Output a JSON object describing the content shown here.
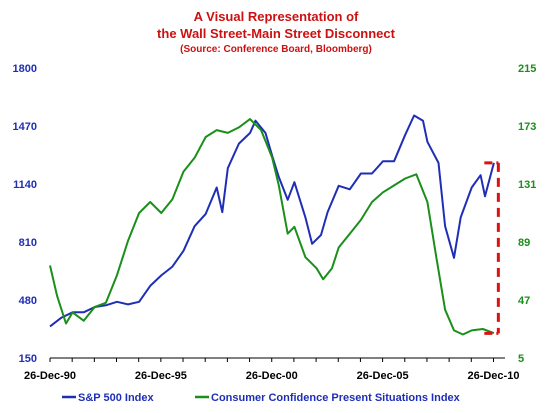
{
  "chart_data": {
    "type": "line",
    "title": "A Visual Representation of",
    "title_line2": "the Wall Street-Main Street Disconnect",
    "subtitle": "(Source: Conference Board, Bloomberg)",
    "x_ticks": [
      "26-Dec-90",
      "26-Dec-95",
      "26-Dec-00",
      "26-Dec-05",
      "26-Dec-10"
    ],
    "x_range": [
      1990.98,
      2011.5
    ],
    "y_left": {
      "range": [
        150,
        1800
      ],
      "ticks": [
        150,
        480,
        810,
        1140,
        1470,
        1800
      ]
    },
    "y_right": {
      "range": [
        5,
        215
      ],
      "ticks": [
        5,
        47,
        89,
        131,
        173,
        215
      ]
    },
    "legend_placement": "bottom",
    "colors": {
      "sp500": "#1f2fb5",
      "confidence": "#1a8f1a",
      "annotation": "#dd1111"
    },
    "annotation": {
      "type": "dashed-bracket",
      "x": 2011.2,
      "y_left_range": [
        290,
        1260
      ]
    },
    "series": [
      {
        "name": "S&P 500 Index",
        "axis": "left",
        "points": [
          [
            1990.98,
            330
          ],
          [
            1991.5,
            380
          ],
          [
            1992.0,
            410
          ],
          [
            1992.5,
            410
          ],
          [
            1993.0,
            440
          ],
          [
            1993.5,
            450
          ],
          [
            1994.0,
            470
          ],
          [
            1994.5,
            455
          ],
          [
            1995.0,
            470
          ],
          [
            1995.5,
            560
          ],
          [
            1996.0,
            620
          ],
          [
            1996.5,
            670
          ],
          [
            1997.0,
            760
          ],
          [
            1997.5,
            900
          ],
          [
            1998.0,
            970
          ],
          [
            1998.5,
            1120
          ],
          [
            1998.75,
            980
          ],
          [
            1999.0,
            1230
          ],
          [
            1999.5,
            1370
          ],
          [
            2000.0,
            1430
          ],
          [
            2000.25,
            1500
          ],
          [
            2000.7,
            1430
          ],
          [
            2001.0,
            1300
          ],
          [
            2001.3,
            1180
          ],
          [
            2001.7,
            1050
          ],
          [
            2002.0,
            1150
          ],
          [
            2002.5,
            950
          ],
          [
            2002.8,
            800
          ],
          [
            2003.2,
            850
          ],
          [
            2003.5,
            980
          ],
          [
            2004.0,
            1130
          ],
          [
            2004.5,
            1110
          ],
          [
            2005.0,
            1200
          ],
          [
            2005.5,
            1200
          ],
          [
            2006.0,
            1270
          ],
          [
            2006.5,
            1270
          ],
          [
            2007.0,
            1420
          ],
          [
            2007.4,
            1530
          ],
          [
            2007.8,
            1500
          ],
          [
            2008.0,
            1380
          ],
          [
            2008.5,
            1260
          ],
          [
            2008.8,
            900
          ],
          [
            2009.2,
            720
          ],
          [
            2009.5,
            950
          ],
          [
            2010.0,
            1120
          ],
          [
            2010.4,
            1190
          ],
          [
            2010.6,
            1070
          ],
          [
            2011.0,
            1260
          ]
        ]
      },
      {
        "name": "Consumer Confidence Present Situations Index",
        "axis": "right",
        "points": [
          [
            1990.98,
            72
          ],
          [
            1991.3,
            50
          ],
          [
            1991.7,
            30
          ],
          [
            1992.0,
            38
          ],
          [
            1992.5,
            32
          ],
          [
            1993.0,
            42
          ],
          [
            1993.5,
            45
          ],
          [
            1994.0,
            65
          ],
          [
            1994.5,
            90
          ],
          [
            1995.0,
            110
          ],
          [
            1995.5,
            118
          ],
          [
            1996.0,
            110
          ],
          [
            1996.5,
            120
          ],
          [
            1997.0,
            140
          ],
          [
            1997.5,
            150
          ],
          [
            1998.0,
            165
          ],
          [
            1998.5,
            170
          ],
          [
            1999.0,
            168
          ],
          [
            1999.5,
            172
          ],
          [
            2000.0,
            178
          ],
          [
            2000.5,
            170
          ],
          [
            2001.0,
            150
          ],
          [
            2001.3,
            130
          ],
          [
            2001.7,
            95
          ],
          [
            2002.0,
            100
          ],
          [
            2002.5,
            78
          ],
          [
            2003.0,
            70
          ],
          [
            2003.3,
            62
          ],
          [
            2003.7,
            70
          ],
          [
            2004.0,
            85
          ],
          [
            2004.5,
            95
          ],
          [
            2005.0,
            105
          ],
          [
            2005.5,
            118
          ],
          [
            2006.0,
            125
          ],
          [
            2006.5,
            130
          ],
          [
            2007.0,
            135
          ],
          [
            2007.5,
            138
          ],
          [
            2008.0,
            118
          ],
          [
            2008.4,
            78
          ],
          [
            2008.8,
            40
          ],
          [
            2009.2,
            25
          ],
          [
            2009.6,
            22
          ],
          [
            2010.0,
            25
          ],
          [
            2010.5,
            26
          ],
          [
            2011.0,
            23
          ]
        ]
      }
    ]
  }
}
